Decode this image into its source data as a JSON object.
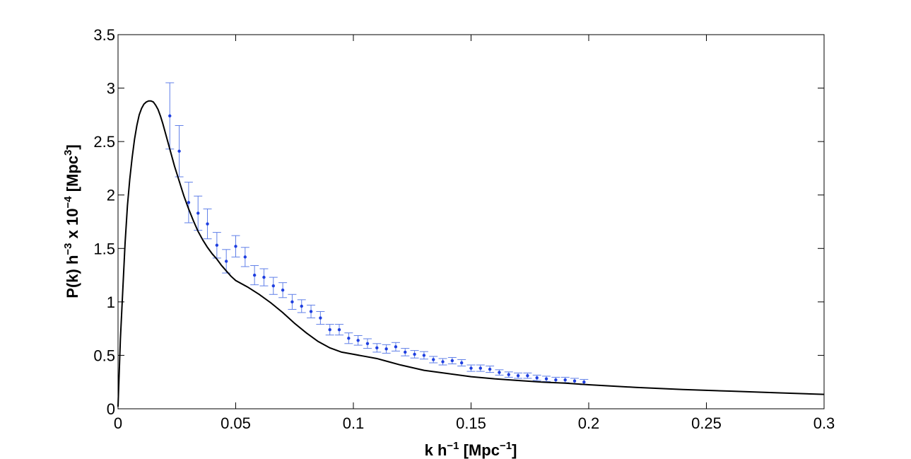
{
  "chart_data": {
    "type": "line",
    "xlabel": {
      "pre": "k h",
      "sup1": "−1",
      "mid": " [Mpc",
      "sup2": "−1",
      "post": "]"
    },
    "ylabel": {
      "pre": "P(k) h",
      "sup1": "−3",
      "mid1": " x 10",
      "sup2": "−4",
      "mid2": " [Mpc",
      "sup3": "3",
      "post": "]"
    },
    "xlim": [
      0,
      0.3
    ],
    "ylim": [
      0,
      3.5
    ],
    "xticks": [
      "0",
      "0.05",
      "0.1",
      "0.15",
      "0.2",
      "0.25",
      "0.3"
    ],
    "yticks": [
      "0",
      "0.5",
      "1",
      "1.5",
      "2",
      "2.5",
      "3",
      "3.5"
    ],
    "grid": false,
    "colors": {
      "model": "#000000",
      "data": "#1f3fe0",
      "errorbar": "#5f7fe8"
    },
    "series": [
      {
        "type": "line",
        "x": [
          0,
          0.001,
          0.002,
          0.003,
          0.004,
          0.005,
          0.006,
          0.007,
          0.008,
          0.009,
          0.01,
          0.011,
          0.012,
          0.013,
          0.014,
          0.015,
          0.016,
          0.017,
          0.018,
          0.019,
          0.02,
          0.021,
          0.022,
          0.023,
          0.024,
          0.025,
          0.026,
          0.027,
          0.028,
          0.029,
          0.03,
          0.032,
          0.034,
          0.036,
          0.038,
          0.04,
          0.042,
          0.044,
          0.046,
          0.048,
          0.05,
          0.055,
          0.06,
          0.065,
          0.07,
          0.075,
          0.08,
          0.085,
          0.09,
          0.095,
          0.1,
          0.105,
          0.11,
          0.115,
          0.12,
          0.13,
          0.14,
          0.15,
          0.16,
          0.17,
          0.18,
          0.19,
          0.2,
          0.22,
          0.24,
          0.26,
          0.28,
          0.3
        ],
        "y": [
          0.02,
          0.65,
          1.1,
          1.55,
          1.9,
          2.15,
          2.35,
          2.52,
          2.65,
          2.75,
          2.81,
          2.85,
          2.87,
          2.88,
          2.88,
          2.87,
          2.84,
          2.8,
          2.74,
          2.67,
          2.59,
          2.51,
          2.43,
          2.35,
          2.27,
          2.2,
          2.13,
          2.06,
          1.99,
          1.93,
          1.87,
          1.76,
          1.66,
          1.58,
          1.51,
          1.45,
          1.4,
          1.34,
          1.29,
          1.24,
          1.2,
          1.14,
          1.07,
          0.99,
          0.9,
          0.8,
          0.71,
          0.63,
          0.57,
          0.53,
          0.51,
          0.49,
          0.47,
          0.44,
          0.41,
          0.36,
          0.33,
          0.3,
          0.28,
          0.265,
          0.25,
          0.24,
          0.225,
          0.2,
          0.18,
          0.165,
          0.15,
          0.135
        ]
      },
      {
        "type": "errorbar",
        "x": [
          0.022,
          0.026,
          0.03,
          0.034,
          0.038,
          0.042,
          0.046,
          0.05,
          0.054,
          0.058,
          0.062,
          0.066,
          0.07,
          0.074,
          0.078,
          0.082,
          0.086,
          0.09,
          0.094,
          0.098,
          0.102,
          0.106,
          0.11,
          0.114,
          0.118,
          0.122,
          0.126,
          0.13,
          0.134,
          0.138,
          0.142,
          0.146,
          0.15,
          0.154,
          0.158,
          0.162,
          0.166,
          0.17,
          0.174,
          0.178,
          0.182,
          0.186,
          0.19,
          0.194,
          0.198
        ],
        "y": [
          2.74,
          2.41,
          1.93,
          1.83,
          1.73,
          1.53,
          1.38,
          1.52,
          1.42,
          1.25,
          1.23,
          1.15,
          1.11,
          1.0,
          0.96,
          0.91,
          0.85,
          0.74,
          0.74,
          0.66,
          0.64,
          0.61,
          0.57,
          0.56,
          0.58,
          0.53,
          0.51,
          0.5,
          0.46,
          0.44,
          0.45,
          0.43,
          0.38,
          0.38,
          0.37,
          0.34,
          0.32,
          0.31,
          0.31,
          0.29,
          0.28,
          0.27,
          0.27,
          0.26,
          0.25
        ],
        "err": [
          0.31,
          0.24,
          0.19,
          0.16,
          0.14,
          0.12,
          0.11,
          0.1,
          0.09,
          0.09,
          0.08,
          0.08,
          0.07,
          0.07,
          0.06,
          0.06,
          0.06,
          0.05,
          0.05,
          0.05,
          0.045,
          0.045,
          0.04,
          0.04,
          0.04,
          0.035,
          0.035,
          0.035,
          0.03,
          0.03,
          0.03,
          0.03,
          0.03,
          0.03,
          0.03,
          0.025,
          0.025,
          0.025,
          0.025,
          0.025,
          0.025,
          0.025,
          0.025,
          0.025,
          0.025
        ]
      }
    ]
  }
}
